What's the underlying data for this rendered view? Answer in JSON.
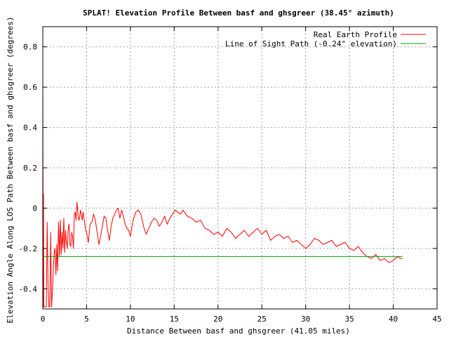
{
  "chart_data": {
    "type": "line",
    "title": "SPLAT! Elevation Profile Between basf and ghsgreer (38.45° azimuth)",
    "xlabel": "Distance Between basf and ghsgreer (41.05 miles)",
    "ylabel": "Elevation Angle Along LOS Path Between basf and ghsgreer (degrees)",
    "xlim": [
      0,
      45
    ],
    "ylim": [
      -0.5,
      0.9
    ],
    "x_ticks": [
      0,
      5,
      10,
      15,
      20,
      25,
      30,
      35,
      40,
      45
    ],
    "y_ticks": [
      -0.4,
      -0.2,
      0,
      0.2,
      0.4,
      0.6,
      0.8
    ],
    "x_tick_labels": [
      "0",
      "5",
      "10",
      "15",
      "20",
      "25",
      "30",
      "35",
      "40",
      "45"
    ],
    "y_tick_labels": [
      "-0.4",
      "-0.2",
      "0",
      "0.2",
      "0.4",
      "0.6",
      "0.8"
    ],
    "grid": true,
    "legend_position": "top-right",
    "series": [
      {
        "name": "Real Earth Profile",
        "color": "#ff0000",
        "x": [
          0.0,
          0.02,
          0.05,
          0.08,
          0.12,
          0.16,
          0.2,
          0.3,
          0.4,
          0.5,
          0.6,
          0.7,
          0.8,
          0.9,
          1.0,
          1.1,
          1.2,
          1.3,
          1.4,
          1.5,
          1.6,
          1.7,
          1.8,
          1.9,
          2.0,
          2.1,
          2.2,
          2.3,
          2.4,
          2.5,
          2.6,
          2.7,
          2.8,
          2.9,
          3.0,
          3.1,
          3.2,
          3.3,
          3.4,
          3.5,
          3.6,
          3.7,
          3.8,
          3.9,
          4.0,
          4.1,
          4.2,
          4.3,
          4.4,
          4.5,
          4.6,
          4.7,
          4.8,
          4.9,
          5.0,
          5.2,
          5.4,
          5.6,
          5.8,
          6.0,
          6.2,
          6.4,
          6.6,
          6.8,
          7.0,
          7.2,
          7.4,
          7.6,
          7.8,
          8.0,
          8.2,
          8.4,
          8.6,
          8.8,
          9.0,
          9.2,
          9.4,
          9.6,
          9.8,
          10.0,
          10.3,
          10.6,
          10.9,
          11.2,
          11.5,
          11.8,
          12.1,
          12.4,
          12.7,
          13.0,
          13.3,
          13.6,
          13.9,
          14.2,
          14.5,
          14.8,
          15.1,
          15.4,
          15.7,
          16.0,
          16.5,
          17.0,
          17.5,
          18.0,
          18.5,
          19.0,
          19.5,
          20.0,
          20.5,
          21.0,
          21.5,
          22.0,
          22.5,
          23.0,
          23.5,
          24.0,
          24.5,
          25.0,
          25.5,
          26.0,
          26.5,
          27.0,
          27.5,
          28.0,
          28.5,
          29.0,
          29.5,
          30.0,
          30.5,
          31.0,
          31.5,
          32.0,
          32.5,
          33.0,
          33.5,
          34.0,
          34.5,
          35.0,
          35.5,
          36.0,
          36.5,
          37.0,
          37.5,
          38.0,
          38.5,
          39.0,
          39.5,
          40.0,
          40.5,
          40.8,
          41.05
        ],
        "y": [
          0.64,
          0.2,
          -0.49,
          0.07,
          -0.49,
          -0.49,
          -0.49,
          -0.49,
          -0.49,
          -0.07,
          -0.38,
          -0.49,
          -0.49,
          -0.12,
          -0.49,
          -0.41,
          -0.3,
          -0.22,
          -0.2,
          -0.33,
          -0.18,
          -0.31,
          -0.07,
          -0.24,
          -0.06,
          -0.23,
          -0.12,
          -0.2,
          -0.05,
          -0.22,
          -0.11,
          -0.17,
          -0.2,
          -0.1,
          -0.08,
          -0.18,
          -0.19,
          -0.12,
          -0.14,
          -0.2,
          -0.03,
          -0.02,
          -0.06,
          0.03,
          -0.02,
          -0.06,
          -0.05,
          -0.01,
          -0.03,
          -0.06,
          -0.02,
          -0.05,
          -0.08,
          -0.11,
          -0.12,
          -0.17,
          -0.08,
          -0.07,
          -0.03,
          -0.06,
          -0.12,
          -0.18,
          -0.14,
          -0.09,
          -0.04,
          -0.05,
          -0.11,
          -0.16,
          -0.09,
          -0.05,
          -0.03,
          -0.01,
          0.0,
          -0.05,
          -0.01,
          -0.04,
          -0.08,
          -0.1,
          -0.11,
          -0.14,
          -0.06,
          -0.02,
          -0.01,
          -0.03,
          -0.09,
          -0.13,
          -0.1,
          -0.07,
          -0.05,
          -0.06,
          -0.09,
          -0.07,
          -0.04,
          -0.08,
          -0.05,
          -0.03,
          -0.01,
          -0.02,
          -0.03,
          -0.01,
          -0.04,
          -0.05,
          -0.07,
          -0.06,
          -0.1,
          -0.11,
          -0.13,
          -0.12,
          -0.14,
          -0.1,
          -0.12,
          -0.15,
          -0.13,
          -0.11,
          -0.14,
          -0.12,
          -0.1,
          -0.13,
          -0.11,
          -0.16,
          -0.14,
          -0.13,
          -0.15,
          -0.14,
          -0.17,
          -0.16,
          -0.18,
          -0.2,
          -0.18,
          -0.15,
          -0.16,
          -0.18,
          -0.17,
          -0.16,
          -0.19,
          -0.18,
          -0.17,
          -0.2,
          -0.21,
          -0.19,
          -0.22,
          -0.24,
          -0.25,
          -0.23,
          -0.26,
          -0.25,
          -0.27,
          -0.26,
          -0.24,
          -0.25,
          -0.25
        ]
      },
      {
        "name": "Line of Sight Path (-0.24° elevation)",
        "color": "#00a000",
        "x": [
          0,
          41.05
        ],
        "y": [
          -0.24,
          -0.24
        ]
      }
    ]
  }
}
